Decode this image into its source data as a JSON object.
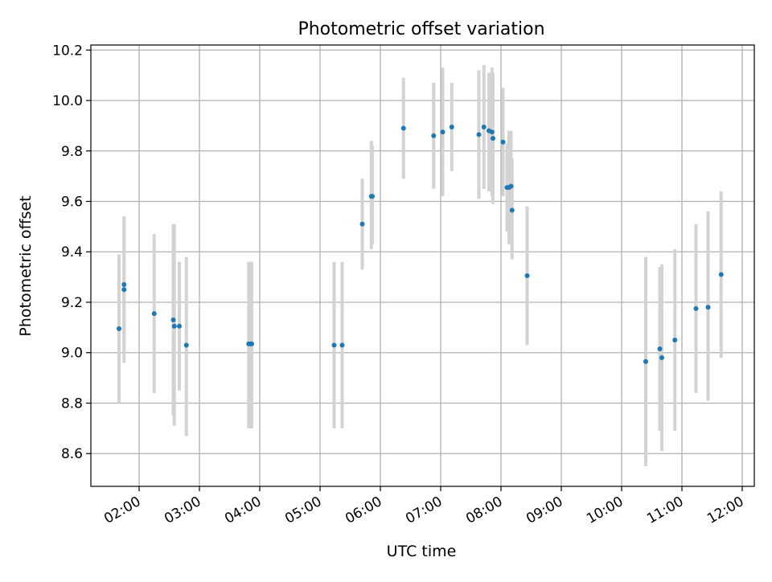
{
  "chart_data": {
    "type": "scatter",
    "title": "Photometric offset variation",
    "xlabel": "UTC time",
    "ylabel": "Photometric offset",
    "grid": true,
    "x_ticks": [
      "02:00",
      "03:00",
      "04:00",
      "05:00",
      "06:00",
      "07:00",
      "08:00",
      "09:00",
      "10:00",
      "11:00",
      "12:00"
    ],
    "y_ticks": [
      "8.6",
      "8.8",
      "9.0",
      "9.2",
      "9.4",
      "9.6",
      "9.8",
      "10.0",
      "10.2"
    ],
    "xlim": [
      "01:12",
      "12:12"
    ],
    "ylim": [
      8.47,
      10.22
    ],
    "colors": {
      "marker": "#1f77b4",
      "errorbar": "#d3d3d3",
      "grid": "#b0b0b0"
    },
    "points": [
      {
        "t": "01:40",
        "y": 9.095,
        "lo": 8.8,
        "hi": 9.39
      },
      {
        "t": "01:45",
        "y": 9.27,
        "lo": 9.0,
        "hi": 9.54
      },
      {
        "t": "01:45",
        "y": 9.25,
        "lo": 8.96,
        "hi": 9.54
      },
      {
        "t": "02:15",
        "y": 9.155,
        "lo": 8.84,
        "hi": 9.47
      },
      {
        "t": "02:34",
        "y": 9.13,
        "lo": 8.75,
        "hi": 9.51
      },
      {
        "t": "02:35",
        "y": 9.105,
        "lo": 8.71,
        "hi": 9.51
      },
      {
        "t": "02:40",
        "y": 9.105,
        "lo": 8.85,
        "hi": 9.36
      },
      {
        "t": "02:47",
        "y": 9.03,
        "lo": 8.67,
        "hi": 9.38
      },
      {
        "t": "03:49",
        "y": 9.035,
        "lo": 8.7,
        "hi": 9.36
      },
      {
        "t": "03:51",
        "y": 9.035,
        "lo": 8.7,
        "hi": 9.36
      },
      {
        "t": "03:52",
        "y": 9.035,
        "lo": 8.7,
        "hi": 9.36
      },
      {
        "t": "05:14",
        "y": 9.03,
        "lo": 8.7,
        "hi": 9.36
      },
      {
        "t": "05:22",
        "y": 9.03,
        "lo": 8.7,
        "hi": 9.36
      },
      {
        "t": "05:42",
        "y": 9.51,
        "lo": 9.33,
        "hi": 9.69
      },
      {
        "t": "05:51",
        "y": 9.62,
        "lo": 9.41,
        "hi": 9.84
      },
      {
        "t": "05:52",
        "y": 9.62,
        "lo": 9.43,
        "hi": 9.82
      },
      {
        "t": "06:23",
        "y": 9.89,
        "lo": 9.69,
        "hi": 10.09
      },
      {
        "t": "06:53",
        "y": 9.86,
        "lo": 9.65,
        "hi": 10.07
      },
      {
        "t": "07:02",
        "y": 9.875,
        "lo": 9.62,
        "hi": 10.13
      },
      {
        "t": "07:11",
        "y": 9.895,
        "lo": 9.72,
        "hi": 10.07
      },
      {
        "t": "07:38",
        "y": 9.865,
        "lo": 9.61,
        "hi": 10.12
      },
      {
        "t": "07:43",
        "y": 9.895,
        "lo": 9.65,
        "hi": 10.14
      },
      {
        "t": "07:48",
        "y": 9.88,
        "lo": 9.64,
        "hi": 10.11
      },
      {
        "t": "07:51",
        "y": 9.875,
        "lo": 9.62,
        "hi": 10.13
      },
      {
        "t": "07:52",
        "y": 9.85,
        "lo": 9.59,
        "hi": 10.11
      },
      {
        "t": "08:02",
        "y": 9.835,
        "lo": 9.62,
        "hi": 10.05
      },
      {
        "t": "08:06",
        "y": 9.655,
        "lo": 9.48,
        "hi": 9.83
      },
      {
        "t": "08:08",
        "y": 9.655,
        "lo": 9.43,
        "hi": 9.88
      },
      {
        "t": "08:10",
        "y": 9.66,
        "lo": 9.44,
        "hi": 9.88
      },
      {
        "t": "08:11",
        "y": 9.565,
        "lo": 9.37,
        "hi": 9.77
      },
      {
        "t": "08:26",
        "y": 9.305,
        "lo": 9.03,
        "hi": 9.58
      },
      {
        "t": "10:24",
        "y": 8.965,
        "lo": 8.55,
        "hi": 9.38
      },
      {
        "t": "10:38",
        "y": 9.015,
        "lo": 8.69,
        "hi": 9.34
      },
      {
        "t": "10:40",
        "y": 8.98,
        "lo": 8.61,
        "hi": 9.35
      },
      {
        "t": "10:53",
        "y": 9.05,
        "lo": 8.69,
        "hi": 9.41
      },
      {
        "t": "11:14",
        "y": 9.175,
        "lo": 8.84,
        "hi": 9.51
      },
      {
        "t": "11:26",
        "y": 9.18,
        "lo": 8.81,
        "hi": 9.56
      },
      {
        "t": "11:39",
        "y": 9.31,
        "lo": 8.98,
        "hi": 9.64
      }
    ]
  }
}
